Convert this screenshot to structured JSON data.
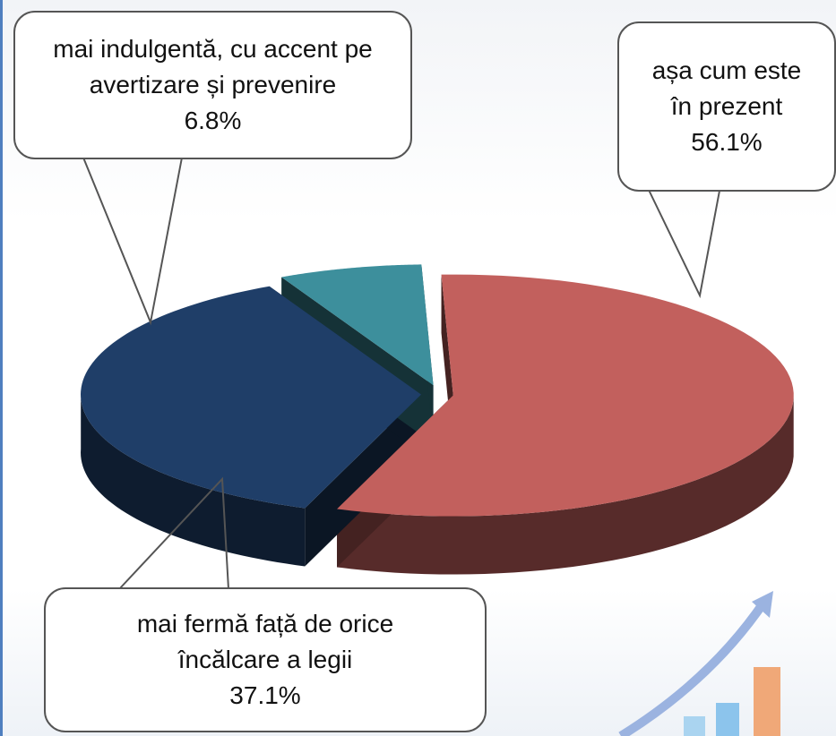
{
  "chart_data": {
    "type": "pie",
    "categories": [
      "mai indulgentă, cu accent pe avertizare și prevenire",
      "așa cum este în prezent",
      "mai fermă față de orice încălcare a legii"
    ],
    "values": [
      6.8,
      56.1,
      37.1
    ],
    "value_labels": [
      "6.8%",
      "56.1%",
      "37.1%"
    ],
    "colors": [
      "#3d8f9c",
      "#c2605d",
      "#1f3e68"
    ]
  }
}
